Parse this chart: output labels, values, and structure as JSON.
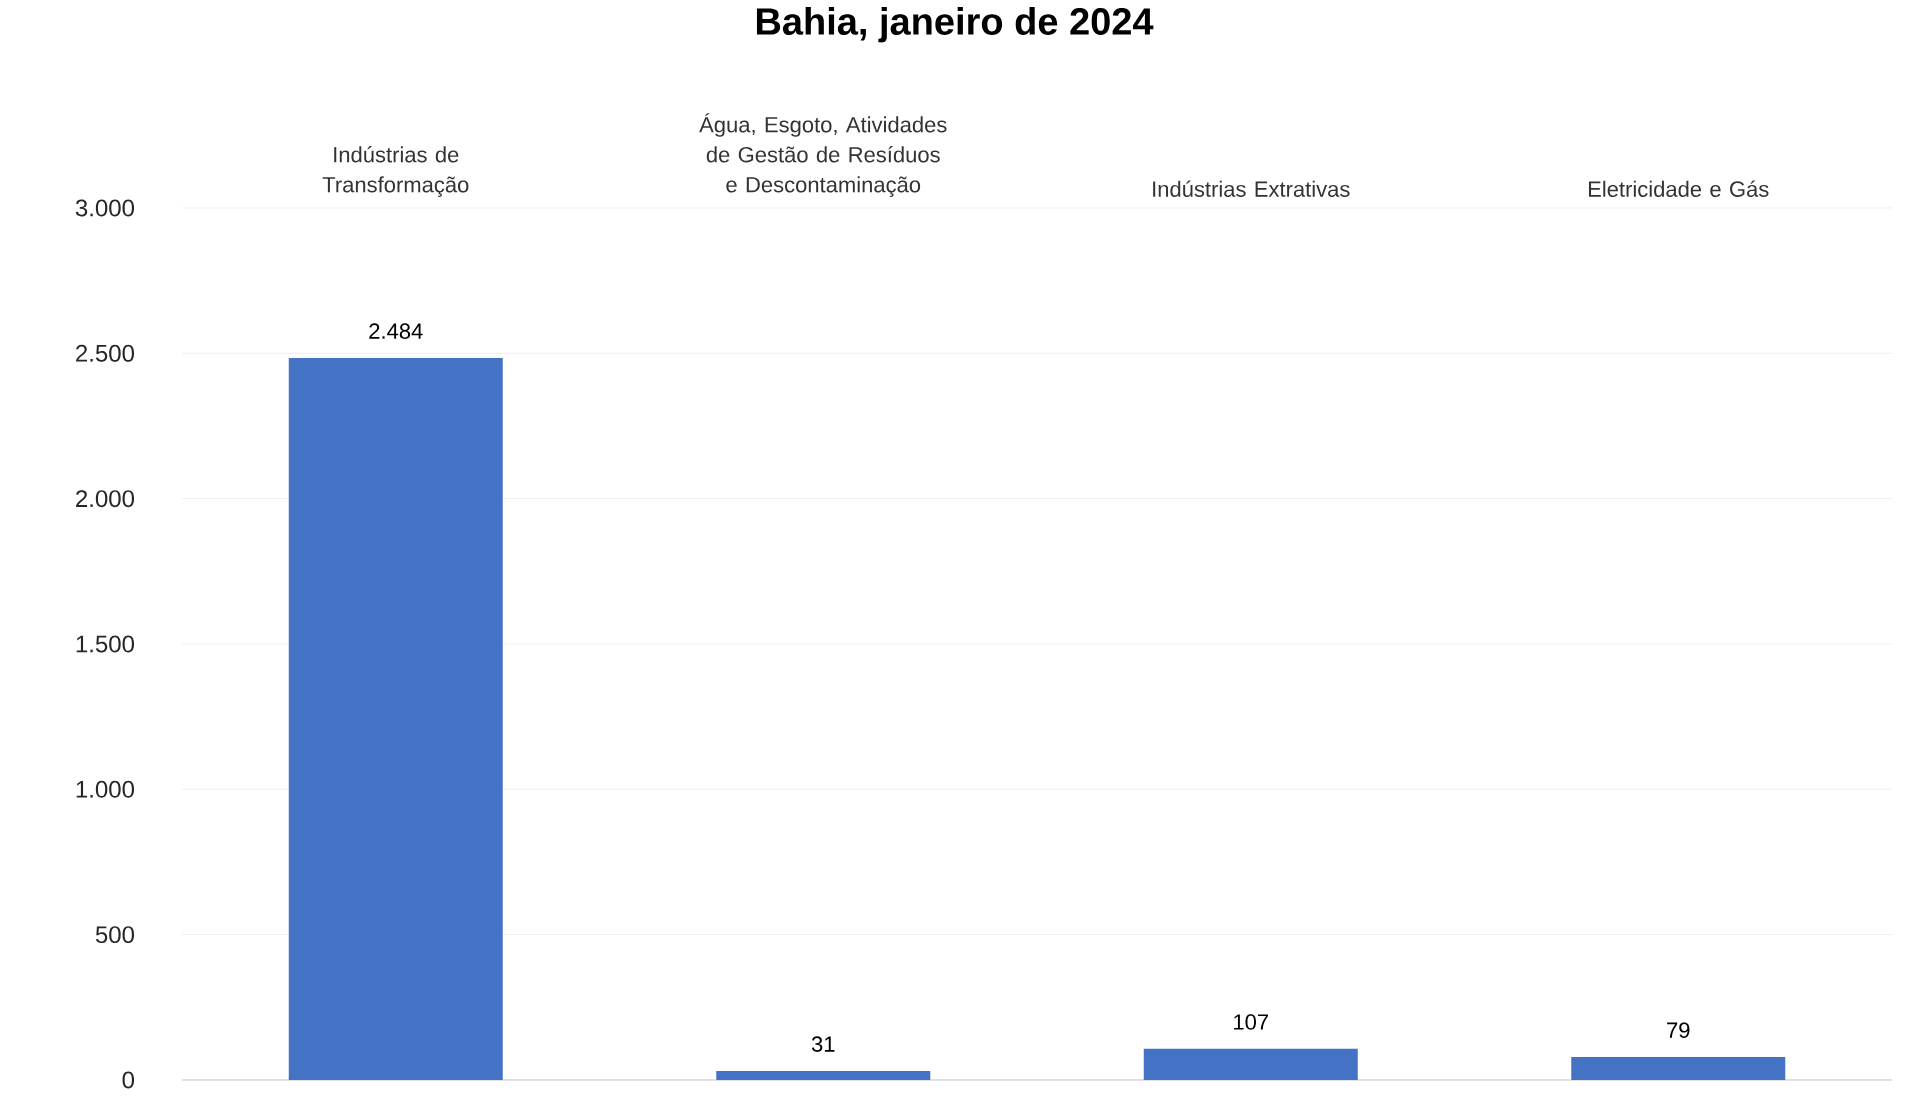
{
  "chart_data": {
    "type": "bar",
    "title": "Bahia, janeiro de 2024",
    "categories": [
      "Indústrias de Transformação",
      "Água, Esgoto, Atividades de Gestão de Resíduos e Descontaminação",
      "Indústrias Extrativas",
      "Eletricidade e Gás"
    ],
    "values": [
      2484,
      31,
      107,
      79
    ],
    "value_labels": [
      "2.484",
      "31",
      "107",
      "79"
    ],
    "color": "#4472c4",
    "ylim": [
      0,
      3000
    ],
    "yticks": [
      0,
      {
        "value": 500,
        "label": "500"
      },
      {
        "value": 1000,
        "label": "1.000"
      },
      {
        "value": 1500,
        "label": "1.500"
      },
      {
        "value": 2000,
        "label": "2.000"
      },
      {
        "value": 2500,
        "label": "2.500"
      },
      {
        "value": 3000,
        "label": "3.000"
      }
    ],
    "grid": "y"
  }
}
